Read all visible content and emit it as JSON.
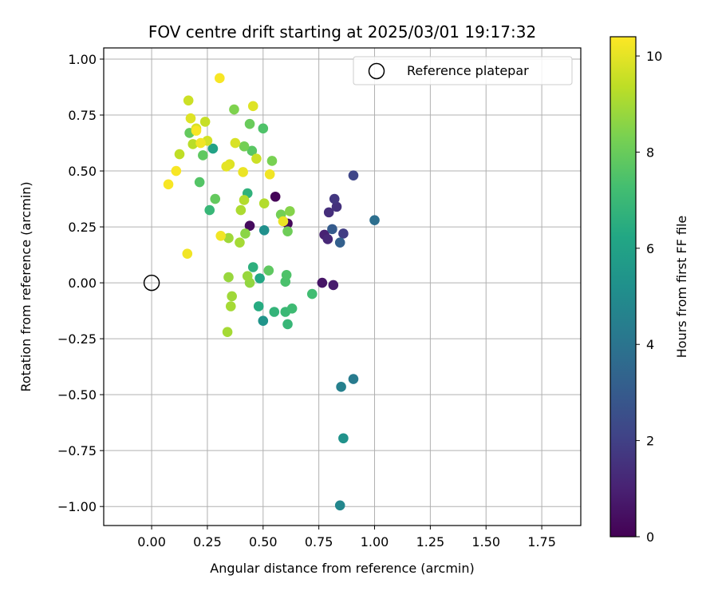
{
  "chart_data": {
    "type": "scatter",
    "title": "FOV centre drift starting at 2025/03/01 19:17:32",
    "xlabel": "Angular distance from reference (arcmin)",
    "ylabel": "Rotation from reference (arcmin)",
    "xlim": [
      -0.215,
      1.925
    ],
    "ylim": [
      -1.085,
      1.05
    ],
    "xticks": [
      0.0,
      0.25,
      0.5,
      0.75,
      1.0,
      1.25,
      1.5,
      1.75
    ],
    "xtick_labels": [
      "0.00",
      "0.25",
      "0.50",
      "0.75",
      "1.00",
      "1.25",
      "1.50",
      "1.75"
    ],
    "yticks": [
      1.0,
      0.75,
      0.5,
      0.25,
      0.0,
      -0.25,
      -0.5,
      -0.75,
      -1.0
    ],
    "ytick_labels": [
      "1.00",
      "0.75",
      "0.50",
      "0.25",
      "0.00",
      "−0.25",
      "−0.50",
      "−0.75",
      "−1.00"
    ],
    "grid": true,
    "legend": {
      "placement": "top-right",
      "entries": [
        {
          "label": "Reference platepar",
          "marker": "open-circle"
        }
      ]
    },
    "reference_point": {
      "x": 0.0,
      "y": 0.0
    },
    "colorbar": {
      "label": "Hours from first FF file",
      "colormap": "viridis",
      "range": [
        0,
        10.4
      ],
      "ticks": [
        0,
        2,
        4,
        6,
        8,
        10
      ],
      "tick_labels": [
        "0",
        "2",
        "4",
        "6",
        "8",
        "10"
      ]
    },
    "points": [
      {
        "x": 0.555,
        "y": 0.385,
        "c": 0.1
      },
      {
        "x": 0.61,
        "y": 0.265,
        "c": 0.2
      },
      {
        "x": 0.44,
        "y": 0.255,
        "c": 0.3
      },
      {
        "x": 0.765,
        "y": 0.0,
        "c": 0.6
      },
      {
        "x": 0.815,
        "y": -0.01,
        "c": 0.8
      },
      {
        "x": 0.775,
        "y": 0.215,
        "c": 1.0
      },
      {
        "x": 0.79,
        "y": 0.195,
        "c": 1.2
      },
      {
        "x": 0.795,
        "y": 0.315,
        "c": 1.4
      },
      {
        "x": 0.83,
        "y": 0.34,
        "c": 1.5
      },
      {
        "x": 0.82,
        "y": 0.375,
        "c": 1.7
      },
      {
        "x": 0.86,
        "y": 0.22,
        "c": 1.9
      },
      {
        "x": 0.905,
        "y": 0.48,
        "c": 2.2
      },
      {
        "x": 0.81,
        "y": 0.24,
        "c": 3.0
      },
      {
        "x": 0.845,
        "y": 0.18,
        "c": 3.2
      },
      {
        "x": 1.0,
        "y": 0.28,
        "c": 3.8
      },
      {
        "x": 0.905,
        "y": -0.43,
        "c": 4.3
      },
      {
        "x": 0.85,
        "y": -0.465,
        "c": 4.5
      },
      {
        "x": 0.845,
        "y": -0.995,
        "c": 4.8
      },
      {
        "x": 0.86,
        "y": -0.695,
        "c": 5.3
      },
      {
        "x": 0.5,
        "y": -0.17,
        "c": 5.4
      },
      {
        "x": 0.505,
        "y": 0.235,
        "c": 5.2
      },
      {
        "x": 0.275,
        "y": 0.6,
        "c": 6.0
      },
      {
        "x": 0.485,
        "y": 0.02,
        "c": 6.2
      },
      {
        "x": 0.48,
        "y": -0.105,
        "c": 6.4
      },
      {
        "x": 0.455,
        "y": 0.07,
        "c": 6.6
      },
      {
        "x": 0.43,
        "y": 0.4,
        "c": 6.7
      },
      {
        "x": 0.26,
        "y": 0.325,
        "c": 6.9
      },
      {
        "x": 0.55,
        "y": -0.13,
        "c": 6.8
      },
      {
        "x": 0.6,
        "y": -0.13,
        "c": 7.0
      },
      {
        "x": 0.61,
        "y": -0.185,
        "c": 6.9
      },
      {
        "x": 0.63,
        "y": -0.115,
        "c": 7.1
      },
      {
        "x": 0.72,
        "y": -0.05,
        "c": 7.2
      },
      {
        "x": 0.6,
        "y": 0.005,
        "c": 7.4
      },
      {
        "x": 0.605,
        "y": 0.035,
        "c": 7.5
      },
      {
        "x": 0.525,
        "y": 0.055,
        "c": 7.8
      },
      {
        "x": 0.5,
        "y": 0.69,
        "c": 7.5
      },
      {
        "x": 0.44,
        "y": 0.71,
        "c": 8.0
      },
      {
        "x": 0.45,
        "y": 0.59,
        "c": 7.7
      },
      {
        "x": 0.23,
        "y": 0.57,
        "c": 7.8
      },
      {
        "x": 0.17,
        "y": 0.67,
        "c": 7.9
      },
      {
        "x": 0.215,
        "y": 0.45,
        "c": 7.6
      },
      {
        "x": 0.285,
        "y": 0.375,
        "c": 7.9
      },
      {
        "x": 0.415,
        "y": 0.61,
        "c": 8.2
      },
      {
        "x": 0.37,
        "y": 0.775,
        "c": 8.4
      },
      {
        "x": 0.54,
        "y": 0.545,
        "c": 8.3
      },
      {
        "x": 0.58,
        "y": 0.305,
        "c": 8.2
      },
      {
        "x": 0.62,
        "y": 0.32,
        "c": 8.5
      },
      {
        "x": 0.61,
        "y": 0.23,
        "c": 8.1
      },
      {
        "x": 0.42,
        "y": 0.22,
        "c": 8.6
      },
      {
        "x": 0.44,
        "y": 0.0,
        "c": 8.7
      },
      {
        "x": 0.43,
        "y": 0.03,
        "c": 8.8
      },
      {
        "x": 0.345,
        "y": 0.025,
        "c": 8.8
      },
      {
        "x": 0.345,
        "y": 0.2,
        "c": 8.9
      },
      {
        "x": 0.36,
        "y": -0.06,
        "c": 8.9
      },
      {
        "x": 0.355,
        "y": -0.105,
        "c": 9.0
      },
      {
        "x": 0.34,
        "y": -0.22,
        "c": 9.0
      },
      {
        "x": 0.395,
        "y": 0.18,
        "c": 9.0
      },
      {
        "x": 0.415,
        "y": 0.37,
        "c": 9.2
      },
      {
        "x": 0.4,
        "y": 0.325,
        "c": 9.1
      },
      {
        "x": 0.505,
        "y": 0.355,
        "c": 9.2
      },
      {
        "x": 0.185,
        "y": 0.62,
        "c": 9.3
      },
      {
        "x": 0.125,
        "y": 0.575,
        "c": 9.4
      },
      {
        "x": 0.24,
        "y": 0.72,
        "c": 9.5
      },
      {
        "x": 0.165,
        "y": 0.815,
        "c": 9.6
      },
      {
        "x": 0.2,
        "y": 0.69,
        "c": 9.8
      },
      {
        "x": 0.175,
        "y": 0.735,
        "c": 9.9
      },
      {
        "x": 0.25,
        "y": 0.635,
        "c": 9.7
      },
      {
        "x": 0.47,
        "y": 0.555,
        "c": 9.6
      },
      {
        "x": 0.455,
        "y": 0.79,
        "c": 9.9
      },
      {
        "x": 0.375,
        "y": 0.625,
        "c": 9.8
      },
      {
        "x": 0.35,
        "y": 0.53,
        "c": 9.9
      },
      {
        "x": 0.335,
        "y": 0.52,
        "c": 10.0
      },
      {
        "x": 0.41,
        "y": 0.495,
        "c": 10.1
      },
      {
        "x": 0.53,
        "y": 0.485,
        "c": 10.2
      },
      {
        "x": 0.59,
        "y": 0.275,
        "c": 10.1
      },
      {
        "x": 0.31,
        "y": 0.21,
        "c": 10.2
      },
      {
        "x": 0.305,
        "y": 0.915,
        "c": 10.3
      },
      {
        "x": 0.2,
        "y": 0.68,
        "c": 10.3
      },
      {
        "x": 0.22,
        "y": 0.625,
        "c": 10.2
      },
      {
        "x": 0.11,
        "y": 0.5,
        "c": 10.3
      },
      {
        "x": 0.075,
        "y": 0.44,
        "c": 10.3
      },
      {
        "x": 0.16,
        "y": 0.13,
        "c": 10.2
      }
    ]
  }
}
